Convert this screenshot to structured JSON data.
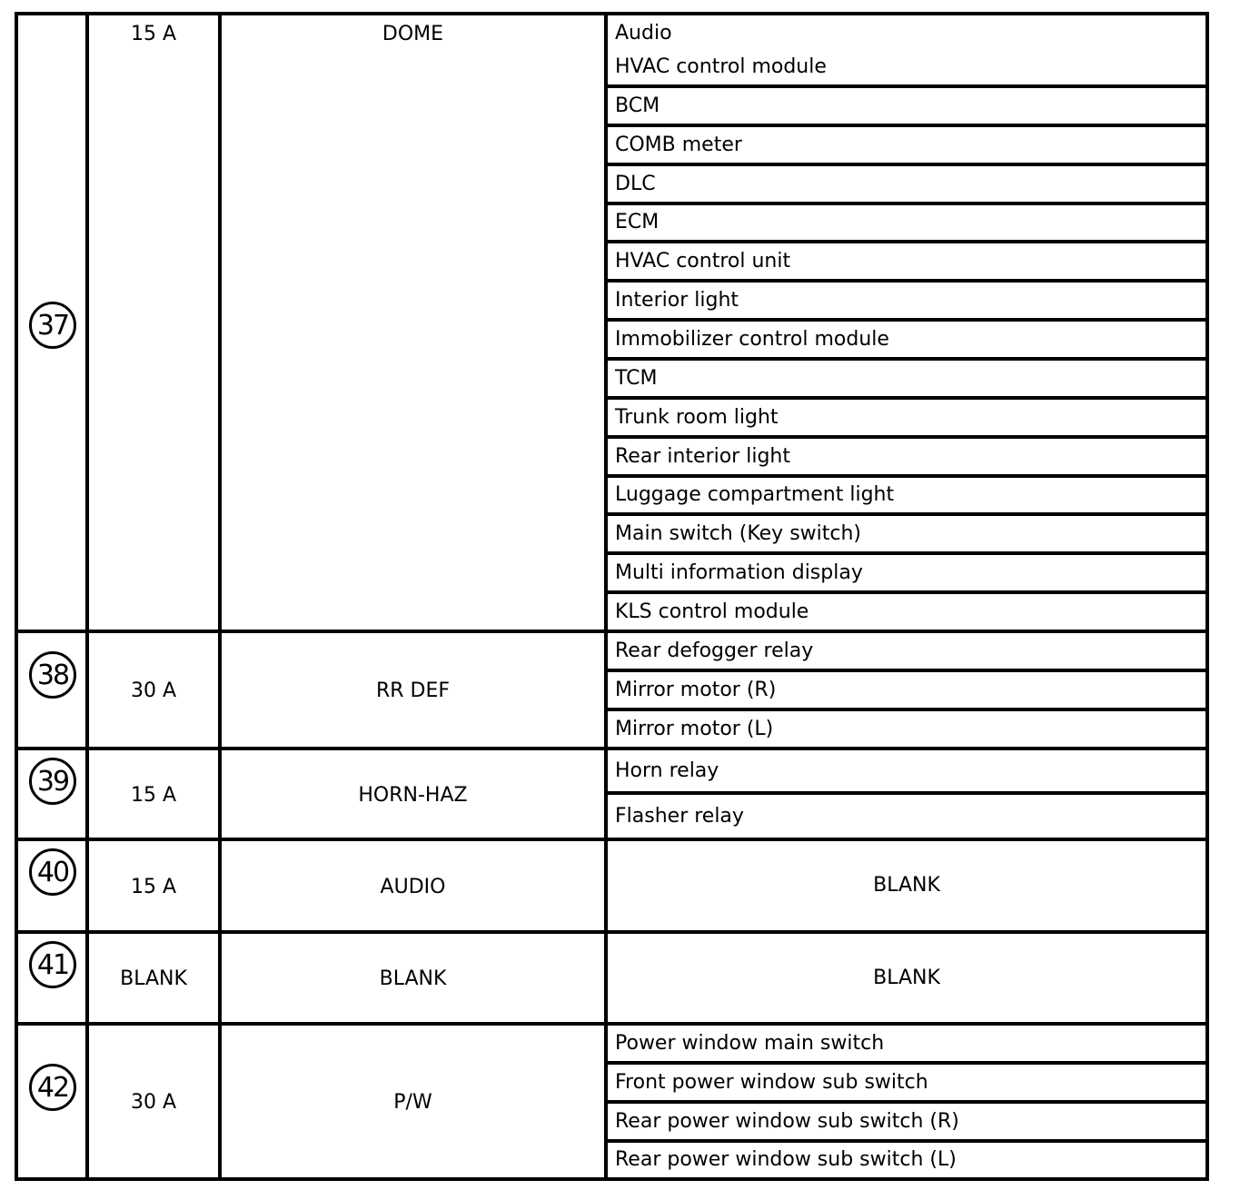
{
  "fuses": [
    {
      "number": "37",
      "amperage": "15 A",
      "name": "DOME",
      "circuits": [
        "Audio\nHVAC control module",
        "BCM",
        "COMB meter",
        "DLC",
        "ECM",
        "HVAC control unit",
        "Interior light",
        "Immobilizer control module",
        "TCM",
        "Trunk room light",
        "Rear interior light",
        "Luggage compartment light",
        "Main switch (Key switch)",
        "Multi information display",
        "KLS control module"
      ]
    },
    {
      "number": "38",
      "amperage": "30 A",
      "name": "RR DEF",
      "circuits": [
        "Rear defogger relay",
        "Mirror motor (R)",
        "Mirror motor (L)"
      ]
    },
    {
      "number": "39",
      "amperage": "15 A",
      "name": "HORN-HAZ",
      "circuits": [
        "Horn relay",
        "Flasher relay"
      ]
    },
    {
      "number": "40",
      "amperage": "15 A",
      "name": "AUDIO",
      "circuits": [
        "BLANK"
      ]
    },
    {
      "number": "41",
      "amperage": "BLANK",
      "name": "BLANK",
      "circuits": [
        "BLANK"
      ]
    },
    {
      "number": "42",
      "amperage": "30 A",
      "name": "P/W",
      "circuits": [
        "Power window main switch",
        "Front power window sub switch",
        "Rear power window sub switch (R)",
        "Rear power window sub switch (L)"
      ]
    }
  ]
}
